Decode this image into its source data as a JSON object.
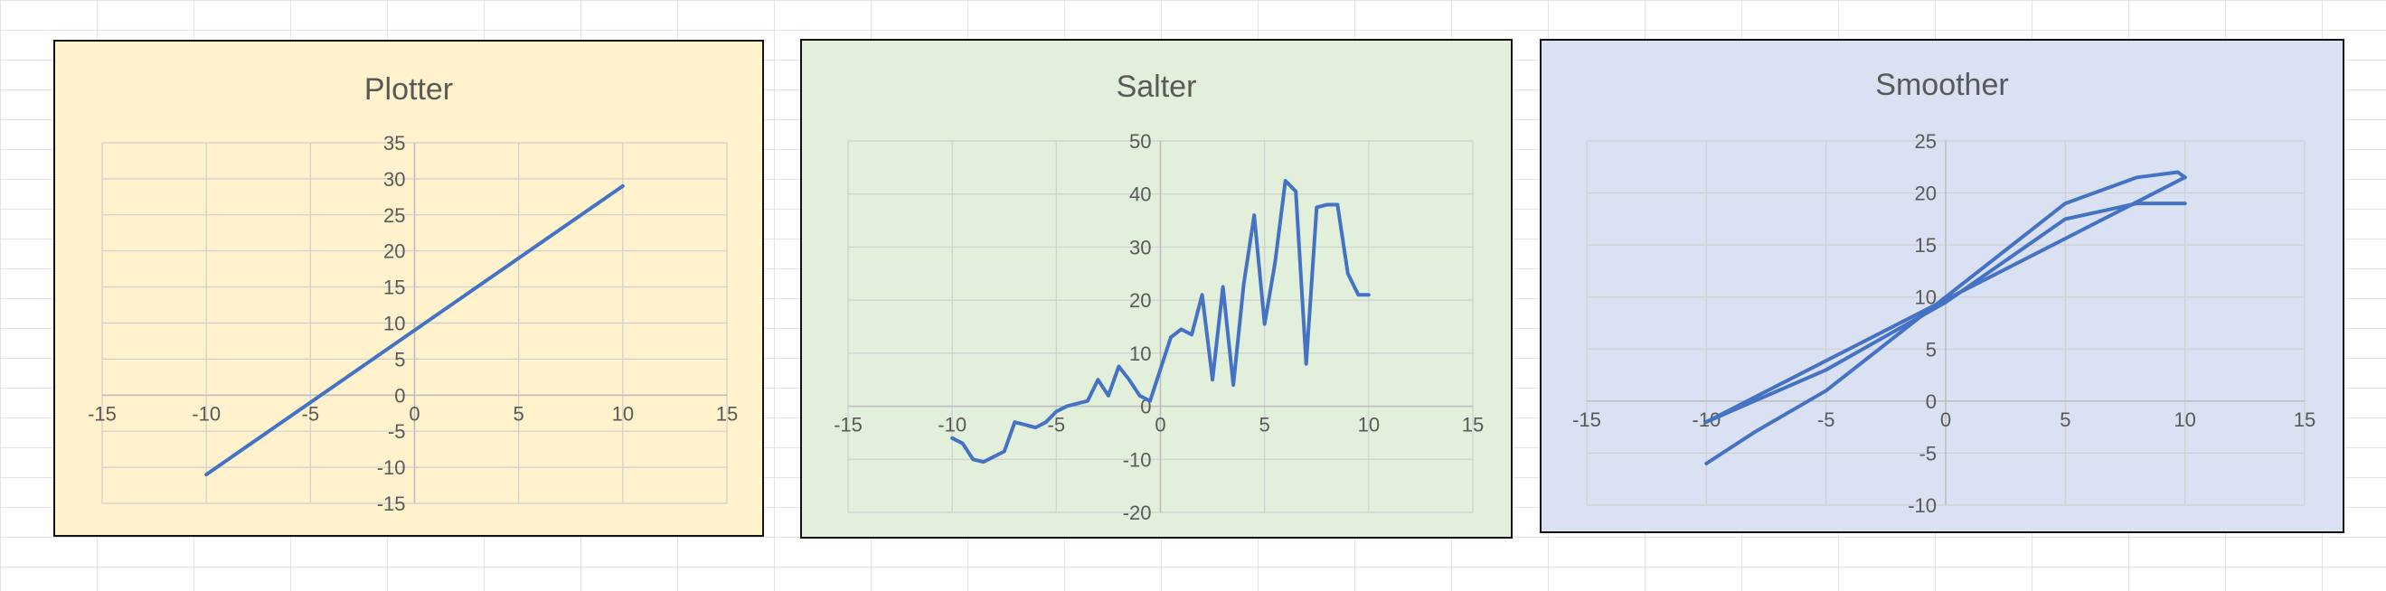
{
  "chart_data": [
    {
      "type": "scatter",
      "title": "Plotter",
      "background": "#fff2cc",
      "line_color": "#4472c4",
      "xlim": [
        -15,
        15
      ],
      "ylim": [
        -15,
        35
      ],
      "x_ticks": [
        -15,
        -10,
        -5,
        0,
        5,
        10,
        15
      ],
      "y_ticks": [
        -15,
        -10,
        -5,
        0,
        5,
        10,
        15,
        20,
        25,
        30,
        35
      ],
      "grid": true,
      "series": [
        {
          "x": [
            -10,
            10
          ],
          "y": [
            -11,
            29
          ]
        }
      ]
    },
    {
      "type": "scatter",
      "title": "Salter",
      "background": "#e2efda",
      "line_color": "#4472c4",
      "xlim": [
        -15,
        15
      ],
      "ylim": [
        -20,
        50
      ],
      "x_ticks": [
        -15,
        -10,
        -5,
        0,
        5,
        10,
        15
      ],
      "y_ticks": [
        -20,
        -10,
        0,
        10,
        20,
        30,
        40,
        50
      ],
      "grid": true,
      "series": [
        {
          "x": [
            -10,
            -9.5,
            -9,
            -8.5,
            -7.5,
            -7,
            -6.5,
            -6,
            -5.5,
            -5,
            -4.5,
            -4,
            -3.5,
            -3,
            -2.5,
            -2,
            -1.5,
            -1,
            -0.5,
            0,
            0.5,
            1,
            1.5,
            2,
            2.5,
            3,
            3.5,
            4,
            4.5,
            5,
            5.5,
            6,
            6.5,
            7,
            7.5,
            8,
            8.5,
            9,
            9.5,
            10
          ],
          "y": [
            -6,
            -7,
            -10,
            -10.5,
            -8.5,
            -3,
            -3.5,
            -4,
            -3,
            -1,
            0,
            0.5,
            1,
            5,
            2,
            7.5,
            5,
            2,
            1,
            7,
            13,
            14.5,
            13.5,
            21,
            5,
            22.5,
            4,
            23,
            36,
            15.5,
            27,
            42.5,
            40.5,
            8,
            37.5,
            38,
            38,
            25,
            21,
            21
          ]
        }
      ]
    },
    {
      "type": "scatter",
      "title": "Smoother",
      "background": "#d9e1f2",
      "line_color": "#4472c4",
      "xlim": [
        -15,
        15
      ],
      "ylim": [
        -10,
        25
      ],
      "x_ticks": [
        -15,
        -10,
        -5,
        0,
        5,
        10,
        15
      ],
      "y_ticks": [
        -10,
        -5,
        0,
        5,
        10,
        15,
        20,
        25
      ],
      "grid": true,
      "series": [
        {
          "x": [
            -10,
            -5,
            0,
            5,
            8,
            10
          ],
          "y": [
            -2,
            3,
            9.5,
            17.5,
            19,
            19
          ]
        },
        {
          "x": [
            -10,
            -8,
            -5,
            0,
            5,
            8,
            9.7,
            10
          ],
          "y": [
            -6,
            -3,
            1,
            10,
            19,
            21.5,
            22,
            21.5
          ]
        },
        {
          "x": [
            -10,
            10
          ],
          "y": [
            -2,
            21.5
          ]
        }
      ]
    }
  ]
}
